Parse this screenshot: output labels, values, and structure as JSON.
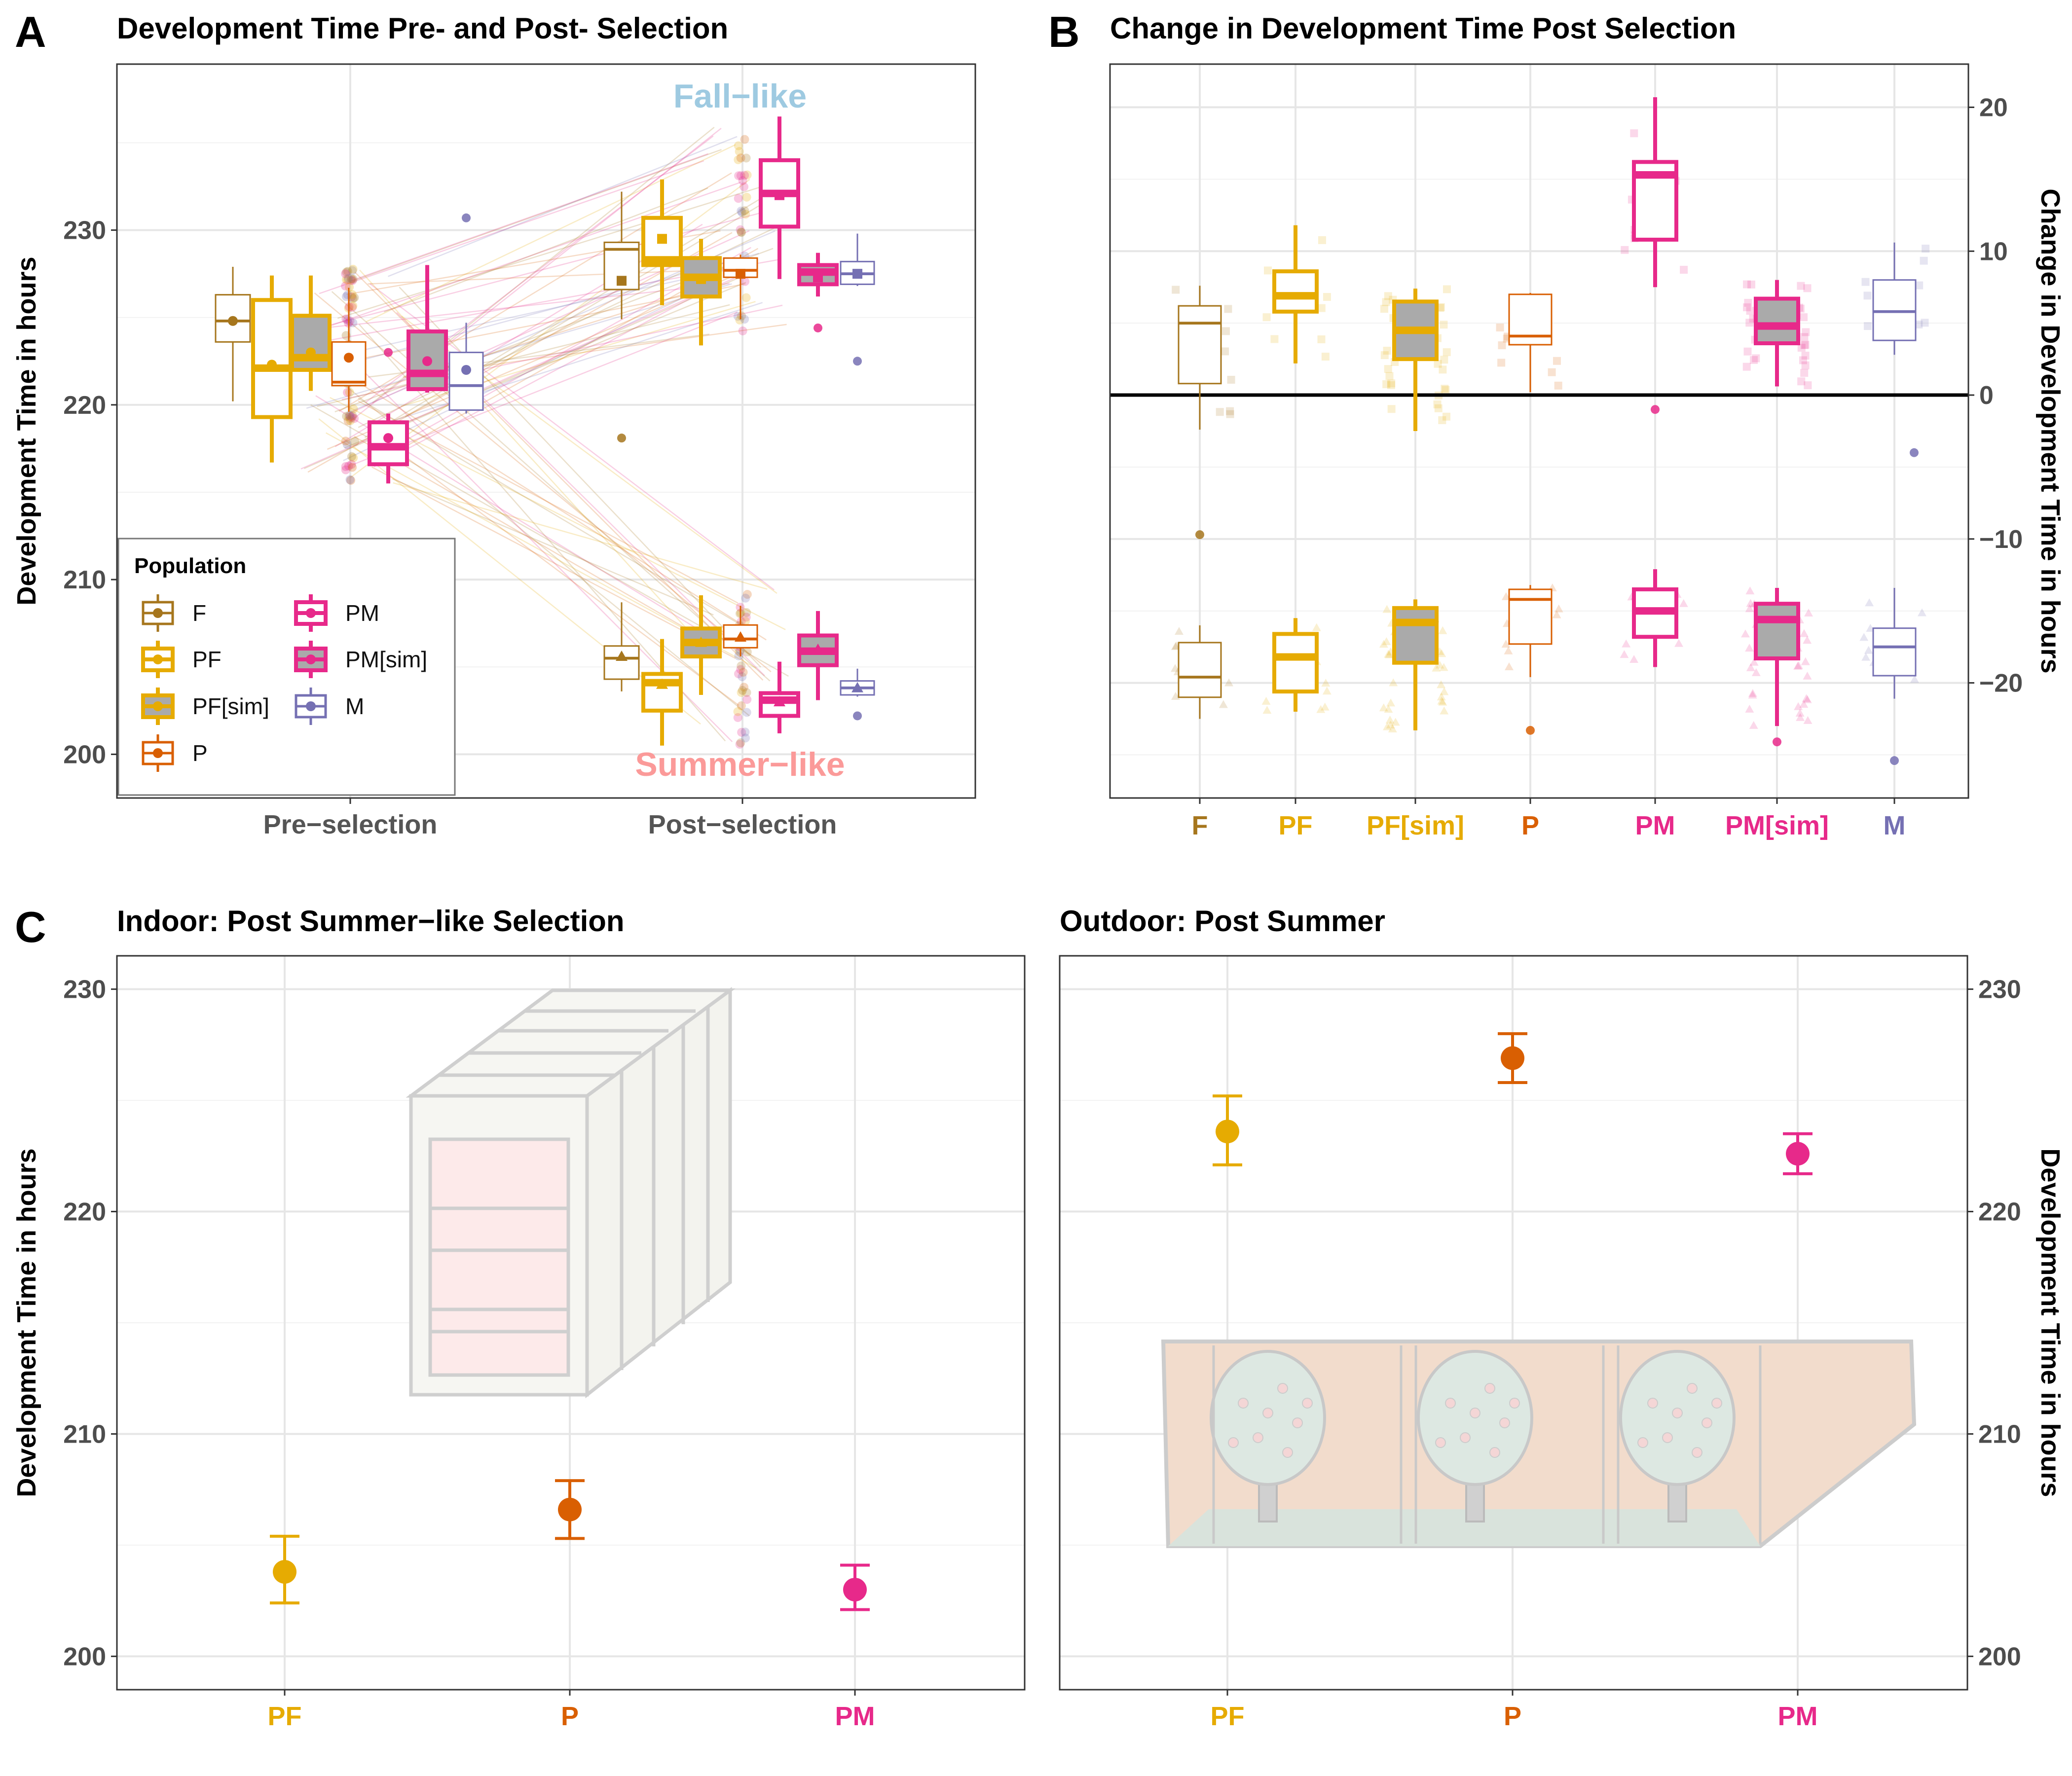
{
  "colors": {
    "F": "#a6761d",
    "PF": "#e6ab02",
    "PF[sim]": "#e6ab02",
    "P": "#d95f02",
    "PM": "#e7298a",
    "PM[sim]": "#e7298a",
    "M": "#7570b3",
    "fall": "#9ecae1",
    "summer": "#fb9a99",
    "grid": "#ebebeb",
    "sim_fill": "#aaaaaa"
  },
  "panels": {
    "A": {
      "letter": "A",
      "title": "Development Time Pre- and Post- Selection",
      "ylabel": "Development Time in hours",
      "annot_fall": "Fall−like",
      "annot_summer": "Summer−like",
      "legend_title": "Population"
    },
    "B": {
      "letter": "B",
      "title": "Change in Development Time Post Selection",
      "ylabel": "Change in Development Time in hours"
    },
    "C": {
      "letter": "C",
      "title_indoor": "Indoor: Post Summer−like Selection",
      "title_outdoor": "Outdoor: Post Summer",
      "ylabel": "Development Time in hours"
    }
  },
  "chart_data": [
    {
      "panel": "A",
      "type": "box",
      "title": "Development Time Pre- and Post- Selection",
      "xlabel": "",
      "ylabel": "Development Time in hours",
      "ylim": [
        197.5,
        239.5
      ],
      "yticks": [
        200,
        210,
        220,
        230
      ],
      "categories": [
        "Pre−selection",
        "Post−selection"
      ],
      "legend": {
        "title": "Population",
        "position": "bottom-left",
        "entries": [
          "F",
          "PF",
          "PF[sim]",
          "P",
          "PM",
          "PM[sim]",
          "M"
        ]
      },
      "series": [
        {
          "group": "Pre−selection",
          "pop": "F",
          "min": 220.2,
          "q1": 223.6,
          "median": 224.8,
          "q3": 226.3,
          "max": 227.9,
          "mean": 224.8
        },
        {
          "group": "Pre−selection",
          "pop": "PF",
          "min": 216.7,
          "q1": 219.3,
          "median": 222.1,
          "q3": 226.0,
          "max": 227.4,
          "mean": 222.3
        },
        {
          "group": "Pre−selection",
          "pop": "PF[sim]",
          "min": 220.8,
          "q1": 222.0,
          "median": 222.7,
          "q3": 225.1,
          "max": 227.4,
          "mean": 223.0
        },
        {
          "group": "Pre−selection",
          "pop": "P",
          "min": 219.6,
          "q1": 221.1,
          "median": 221.3,
          "q3": 223.6,
          "max": 226.7,
          "mean": 222.7
        },
        {
          "group": "Pre−selection",
          "pop": "PM",
          "min": 215.5,
          "q1": 216.6,
          "median": 217.6,
          "q3": 219.0,
          "max": 219.5,
          "mean": 218.1
        },
        {
          "group": "Pre−selection",
          "pop": "PM[sim]",
          "min": 220.7,
          "q1": 220.9,
          "median": 221.8,
          "q3": 224.2,
          "max": 228.0,
          "mean": 222.5
        },
        {
          "group": "Pre−selection",
          "pop": "M",
          "min": 219.5,
          "q1": 219.7,
          "median": 221.1,
          "q3": 223.0,
          "max": 224.7,
          "mean": 222.0
        },
        {
          "group": "Post−selection (Fall−like)",
          "pop": "F",
          "min": 224.9,
          "q1": 226.6,
          "median": 228.9,
          "q3": 229.3,
          "max": 232.2,
          "mean": 227.1
        },
        {
          "group": "Post−selection (Fall−like)",
          "pop": "PF",
          "min": 225.7,
          "q1": 228.0,
          "median": 228.3,
          "q3": 230.7,
          "max": 232.9,
          "mean": 229.5
        },
        {
          "group": "Post−selection (Fall−like)",
          "pop": "PF[sim]",
          "min": 223.4,
          "q1": 226.2,
          "median": 227.3,
          "q3": 228.4,
          "max": 229.5,
          "mean": 227.2
        },
        {
          "group": "Post−selection (Fall−like)",
          "pop": "P",
          "min": 224.9,
          "q1": 227.3,
          "median": 227.7,
          "q3": 228.4,
          "max": 228.6,
          "mean": 227.5
        },
        {
          "group": "Post−selection (Fall−like)",
          "pop": "PM",
          "min": 227.2,
          "q1": 230.2,
          "median": 232.1,
          "q3": 234.0,
          "max": 236.5,
          "mean": 232.0
        },
        {
          "group": "Post−selection (Fall−like)",
          "pop": "PM[sim]",
          "min": 226.2,
          "q1": 226.9,
          "median": 227.6,
          "q3": 228.0,
          "max": 228.7,
          "mean": 227.3
        },
        {
          "group": "Post−selection (Fall−like)",
          "pop": "M",
          "min": 226.8,
          "q1": 226.9,
          "median": 227.5,
          "q3": 228.2,
          "max": 229.8,
          "mean": 227.5
        },
        {
          "group": "Post−selection (Summer−like)",
          "pop": "F",
          "min": 203.6,
          "q1": 204.3,
          "median": 205.5,
          "q3": 206.2,
          "max": 208.7,
          "mean": 205.6
        },
        {
          "group": "Post−selection (Summer−like)",
          "pop": "PF",
          "min": 200.5,
          "q1": 202.5,
          "median": 204.1,
          "q3": 204.6,
          "max": 206.6,
          "mean": 204.0
        },
        {
          "group": "Post−selection (Summer−like)",
          "pop": "PF[sim]",
          "min": 203.4,
          "q1": 205.6,
          "median": 206.4,
          "q3": 207.2,
          "max": 209.1,
          "mean": 206.4
        },
        {
          "group": "Post−selection (Summer−like)",
          "pop": "P",
          "min": 205.6,
          "q1": 206.1,
          "median": 206.6,
          "q3": 207.4,
          "max": 208.5,
          "mean": 206.7
        },
        {
          "group": "Post−selection (Summer−like)",
          "pop": "PM",
          "min": 201.2,
          "q1": 202.2,
          "median": 203.1,
          "q3": 203.5,
          "max": 205.3,
          "mean": 203.0
        },
        {
          "group": "Post−selection (Summer−like)",
          "pop": "PM[sim]",
          "min": 203.1,
          "q1": 205.1,
          "median": 205.9,
          "q3": 206.8,
          "max": 208.2,
          "mean": 206.0
        },
        {
          "group": "Post−selection (Summer−like)",
          "pop": "M",
          "min": 203.3,
          "q1": 203.4,
          "median": 203.8,
          "q3": 204.2,
          "max": 204.9,
          "mean": 203.8
        }
      ]
    },
    {
      "panel": "B",
      "type": "box",
      "title": "Change in Development Time Post Selection",
      "ylabel": "Change in Development Time in hours",
      "ylim": [
        -28,
        23
      ],
      "yticks": [
        -20,
        -10,
        0,
        10,
        20
      ],
      "categories": [
        "F",
        "PF",
        "PF[sim]",
        "P",
        "PM",
        "PM[sim]",
        "M"
      ],
      "series": [
        {
          "name": "Fall−like",
          "boxes": [
            {
              "pop": "F",
              "min": -2.4,
              "q1": 0.8,
              "median": 5.0,
              "q3": 6.2,
              "max": 7.6
            },
            {
              "pop": "PF",
              "min": 2.2,
              "q1": 5.8,
              "median": 6.9,
              "q3": 8.6,
              "max": 11.8
            },
            {
              "pop": "PF[sim]",
              "min": -2.5,
              "q1": 2.5,
              "median": 4.5,
              "q3": 6.5,
              "max": 7.4
            },
            {
              "pop": "P",
              "min": 0.2,
              "q1": 3.5,
              "median": 4.1,
              "q3": 7.0,
              "max": 7.1
            },
            {
              "pop": "PM",
              "min": 7.5,
              "q1": 10.8,
              "median": 15.3,
              "q3": 16.2,
              "max": 20.7
            },
            {
              "pop": "PM[sim]",
              "min": 0.6,
              "q1": 3.6,
              "median": 4.8,
              "q3": 6.7,
              "max": 8.0
            },
            {
              "pop": "M",
              "min": 2.8,
              "q1": 3.8,
              "median": 5.8,
              "q3": 8.0,
              "max": 10.6
            }
          ]
        },
        {
          "name": "Summer−like",
          "boxes": [
            {
              "pop": "F",
              "min": -22.5,
              "q1": -21.0,
              "median": -19.6,
              "q3": -17.2,
              "max": -16.0
            },
            {
              "pop": "PF",
              "min": -22.0,
              "q1": -20.6,
              "median": -18.2,
              "q3": -16.6,
              "max": -15.5
            },
            {
              "pop": "PF[sim]",
              "min": -23.3,
              "q1": -18.6,
              "median": -15.8,
              "q3": -14.8,
              "max": -14.2
            },
            {
              "pop": "P",
              "min": -19.6,
              "q1": -17.3,
              "median": -14.2,
              "q3": -13.5,
              "max": -13.2
            },
            {
              "pop": "PM",
              "min": -18.9,
              "q1": -16.8,
              "median": -15.0,
              "q3": -13.5,
              "max": -12.1
            },
            {
              "pop": "PM[sim]",
              "min": -23.0,
              "q1": -18.3,
              "median": -15.6,
              "q3": -14.5,
              "max": -13.4
            },
            {
              "pop": "M",
              "min": -21.1,
              "q1": -19.5,
              "median": -17.5,
              "q3": -16.2,
              "max": -13.4
            }
          ]
        }
      ],
      "reference_line": 0
    },
    {
      "panel": "C-indoor",
      "type": "scatter",
      "title": "Indoor: Post Summer−like Selection",
      "ylabel": "Development Time in hours",
      "ylim": [
        198.5,
        231.5
      ],
      "yticks": [
        200,
        210,
        220,
        230
      ],
      "categories": [
        "PF",
        "P",
        "PM"
      ],
      "values": [
        203.8,
        206.6,
        203.0
      ],
      "error_low": [
        202.4,
        205.3,
        202.1
      ],
      "error_high": [
        205.4,
        207.9,
        204.1
      ]
    },
    {
      "panel": "C-outdoor",
      "type": "scatter",
      "title": "Outdoor: Post Summer",
      "ylabel": "Development Time in hours",
      "ylim": [
        198.5,
        231.5
      ],
      "yticks": [
        200,
        210,
        220,
        230
      ],
      "categories": [
        "PF",
        "P",
        "PM"
      ],
      "values": [
        223.6,
        226.9,
        222.6
      ],
      "error_low": [
        222.1,
        225.8,
        221.7
      ],
      "error_high": [
        225.2,
        228.0,
        223.5
      ]
    }
  ]
}
